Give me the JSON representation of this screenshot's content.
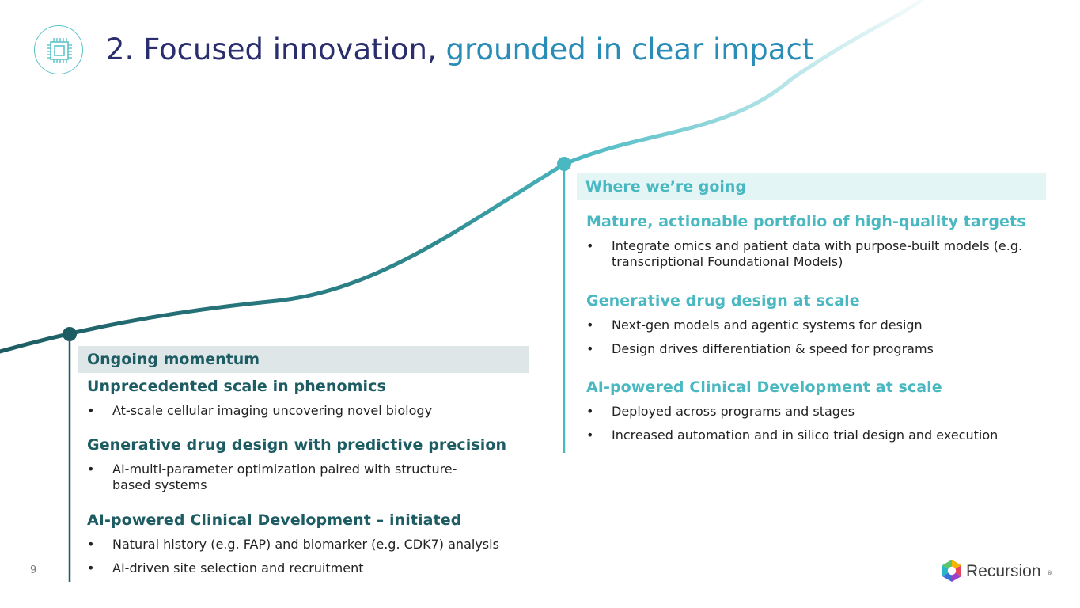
{
  "title": {
    "part1": "2. Focused innovation, ",
    "part2": "grounded in clear impact"
  },
  "left": {
    "header": "Ongoing momentum",
    "sections": [
      {
        "title": "Unprecedented scale in phenomics",
        "bullets": [
          "At-scale cellular imaging uncovering novel biology"
        ]
      },
      {
        "title": "Generative drug design with predictive precision",
        "bullets": [
          "AI-multi-parameter optimization paired with structure-based systems"
        ]
      },
      {
        "title": "AI-powered Clinical Development – initiated",
        "bullets": [
          "Natural history (e.g. FAP) and biomarker (e.g. CDK7) analysis",
          "AI-driven site selection and recruitment"
        ]
      }
    ]
  },
  "right": {
    "header": "Where we’re going",
    "sections": [
      {
        "title": "Mature, actionable portfolio of high-quality targets",
        "bullets": [
          "Integrate omics and patient data with purpose-built models (e.g. transcriptional Foundational Models)"
        ]
      },
      {
        "title": "Generative drug design at scale",
        "bullets": [
          "Next-gen models and agentic systems for design",
          "Design drives differentiation & speed for programs"
        ]
      },
      {
        "title": "AI-powered Clinical Development at scale",
        "bullets": [
          "Deployed across programs and stages",
          "Increased automation and in silico trial design and execution"
        ]
      }
    ]
  },
  "bullet_symbol": "•",
  "page_number": "9",
  "logo": {
    "text": "Recursion",
    "reg": "®"
  },
  "icons": {
    "badge": "cpu-chip-icon",
    "logo": "recursion-hexagon-icon"
  },
  "colors": {
    "dark_teal": "#1d5c63",
    "light_teal": "#49b8c1",
    "navy": "#2a2d6e",
    "title_blue": "#2a8db8"
  }
}
